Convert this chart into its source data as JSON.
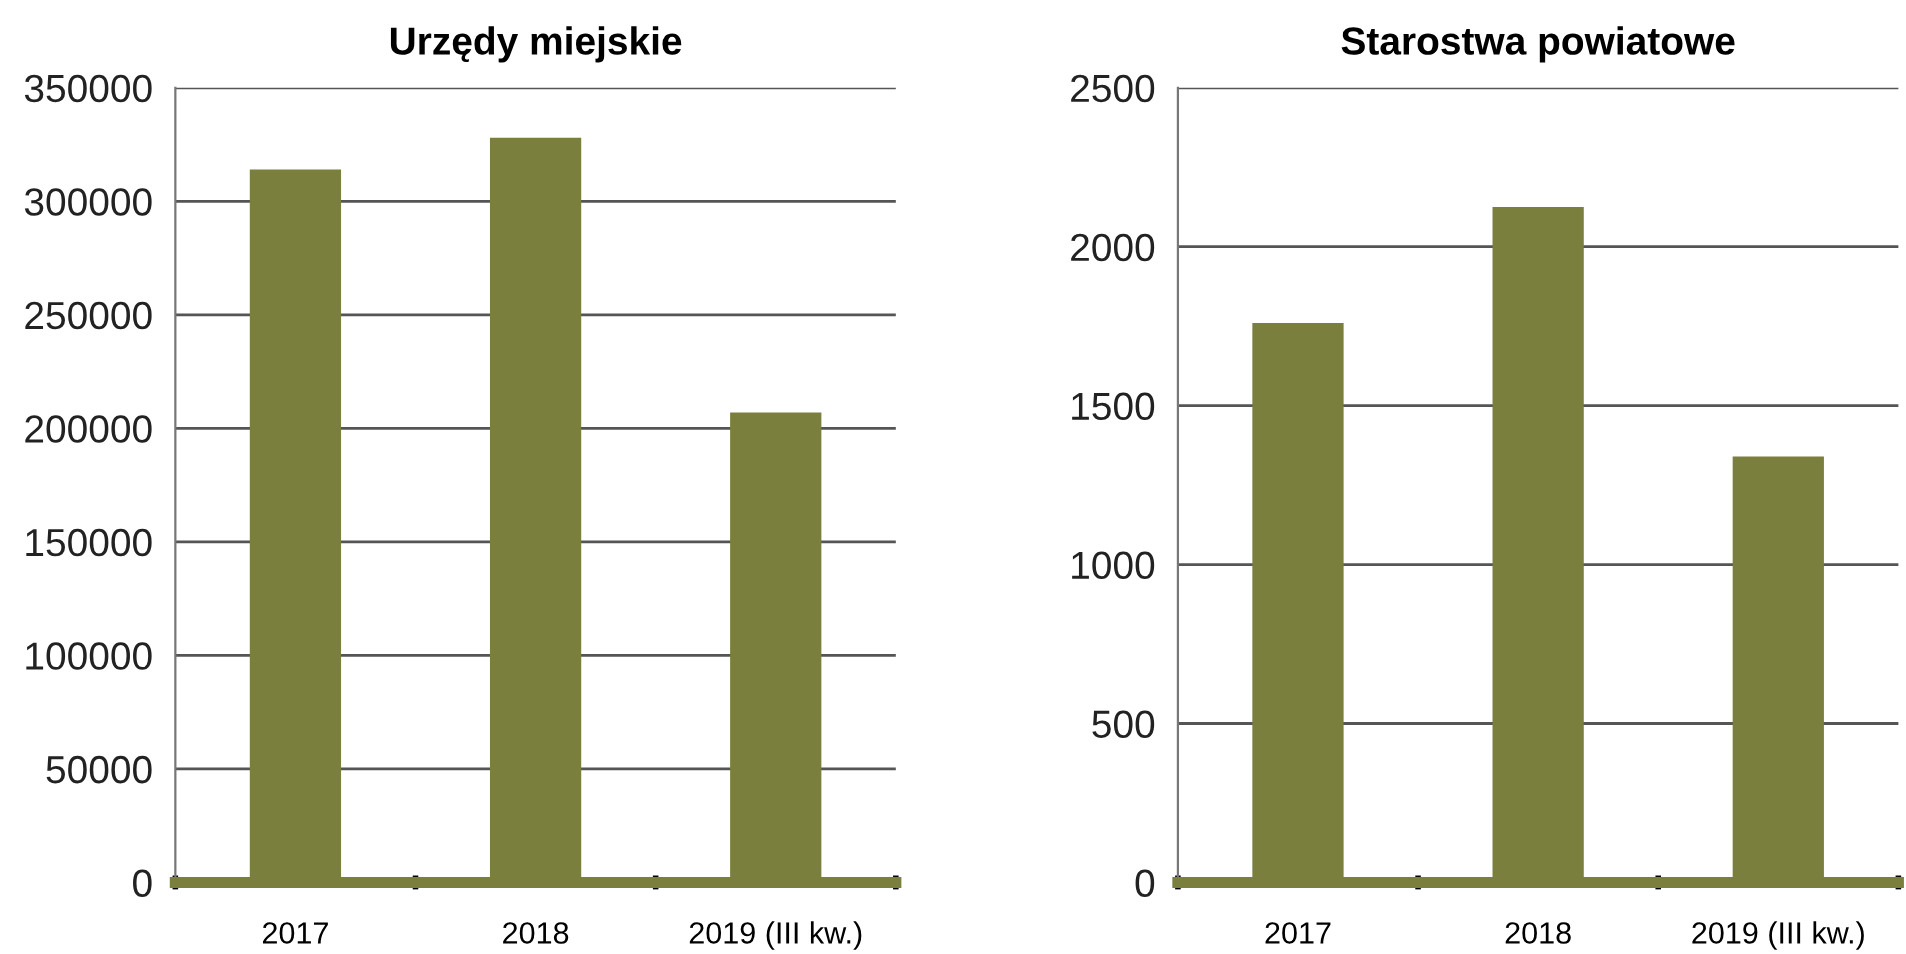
{
  "chart_data": [
    {
      "type": "bar",
      "title": "Urzędy miejskie",
      "categories": [
        "2017",
        "2018",
        "2019 (III kw.)"
      ],
      "values": [
        314000,
        328000,
        207000
      ],
      "color": "#7a7f3e",
      "ylim": [
        0,
        350000
      ],
      "yticks": [
        0,
        50000,
        100000,
        150000,
        200000,
        250000,
        300000,
        350000
      ],
      "grid": "y"
    },
    {
      "type": "bar",
      "title": "Starostwa powiatowe",
      "categories": [
        "2017",
        "2018",
        "2019 (III kw.)"
      ],
      "values": [
        1760,
        2125,
        1340
      ],
      "color": "#7a7f3e",
      "ylim": [
        0,
        2500
      ],
      "yticks": [
        0,
        500,
        1000,
        1500,
        2000,
        2500
      ],
      "grid": "y"
    }
  ]
}
